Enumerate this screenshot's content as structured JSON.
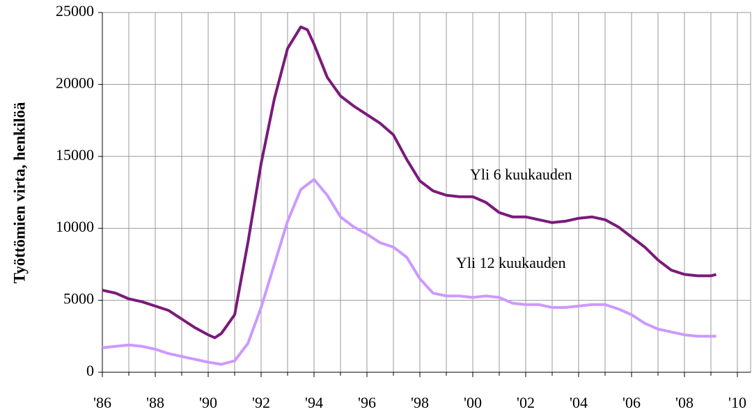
{
  "chart_data": {
    "type": "line",
    "y_label": "Työttömien virta, henkilöä",
    "xlim": [
      1986,
      2010.5
    ],
    "xticks": [
      {
        "value": 1986,
        "label": "'86"
      },
      {
        "value": 1988,
        "label": "'88"
      },
      {
        "value": 1990,
        "label": "'90"
      },
      {
        "value": 1992,
        "label": "'92"
      },
      {
        "value": 1994,
        "label": "'94"
      },
      {
        "value": 1996,
        "label": "'96"
      },
      {
        "value": 1998,
        "label": "'98"
      },
      {
        "value": 2000,
        "label": "'00"
      },
      {
        "value": 2002,
        "label": "'02"
      },
      {
        "value": 2004,
        "label": "'04"
      },
      {
        "value": 2006,
        "label": "'06"
      },
      {
        "value": 2008,
        "label": "'08"
      },
      {
        "value": 2010,
        "label": "'10"
      }
    ],
    "x_minor_ticks": [
      1987,
      1989,
      1991,
      1993,
      1995,
      1997,
      1999,
      2001,
      2003,
      2005,
      2007,
      2009
    ],
    "ylim": [
      0,
      25000
    ],
    "yticks": [
      0,
      5000,
      10000,
      15000,
      20000,
      25000
    ],
    "grid": true,
    "series": [
      {
        "name": "Yli 6 kuukauden",
        "color": "#7a1a7a",
        "x": [
          1986,
          1986.5,
          1987,
          1987.5,
          1988,
          1988.5,
          1989,
          1989.5,
          1990,
          1990.25,
          1990.5,
          1991,
          1991.5,
          1992,
          1992.5,
          1993,
          1993.5,
          1993.75,
          1994,
          1994.5,
          1995,
          1995.5,
          1996,
          1996.5,
          1997,
          1997.5,
          1998,
          1998.5,
          1999,
          1999.5,
          2000,
          2000.5,
          2001,
          2001.5,
          2002,
          2002.5,
          2003,
          2003.5,
          2004,
          2004.5,
          2005,
          2005.5,
          2006,
          2006.5,
          2007,
          2007.5,
          2008,
          2008.5,
          2009,
          2009.2
        ],
        "values": [
          5700,
          5500,
          5100,
          4900,
          4600,
          4300,
          3700,
          3100,
          2600,
          2400,
          2700,
          4000,
          9000,
          14500,
          19000,
          22500,
          24000,
          23800,
          22800,
          20500,
          19200,
          18500,
          17900,
          17300,
          16500,
          14800,
          13300,
          12600,
          12300,
          12200,
          12200,
          11800,
          11100,
          10800,
          10800,
          10600,
          10400,
          10500,
          10700,
          10800,
          10600,
          10100,
          9400,
          8700,
          7800,
          7100,
          6800,
          6700,
          6700,
          6800
        ]
      },
      {
        "name": "Yli 12 kuukauden",
        "color": "#cc99ff",
        "x": [
          1986,
          1986.5,
          1987,
          1987.5,
          1988,
          1988.5,
          1989,
          1989.5,
          1990,
          1990.5,
          1991,
          1991.5,
          1992,
          1992.5,
          1993,
          1993.5,
          1994,
          1994.5,
          1995,
          1995.5,
          1996,
          1996.5,
          1997,
          1997.5,
          1998,
          1998.5,
          1999,
          1999.5,
          2000,
          2000.5,
          2001,
          2001.5,
          2002,
          2002.5,
          2003,
          2003.5,
          2004,
          2004.5,
          2005,
          2005.5,
          2006,
          2006.5,
          2007,
          2007.5,
          2008,
          2008.5,
          2009,
          2009.2
        ],
        "values": [
          1700,
          1800,
          1900,
          1800,
          1600,
          1300,
          1100,
          900,
          700,
          550,
          800,
          2000,
          4500,
          7500,
          10500,
          12700,
          13400,
          12300,
          10800,
          10100,
          9600,
          9000,
          8700,
          8000,
          6500,
          5500,
          5300,
          5300,
          5200,
          5300,
          5200,
          4800,
          4700,
          4700,
          4500,
          4500,
          4600,
          4700,
          4700,
          4400,
          4000,
          3400,
          3000,
          2800,
          2600,
          2500,
          2500,
          2500
        ]
      }
    ]
  }
}
